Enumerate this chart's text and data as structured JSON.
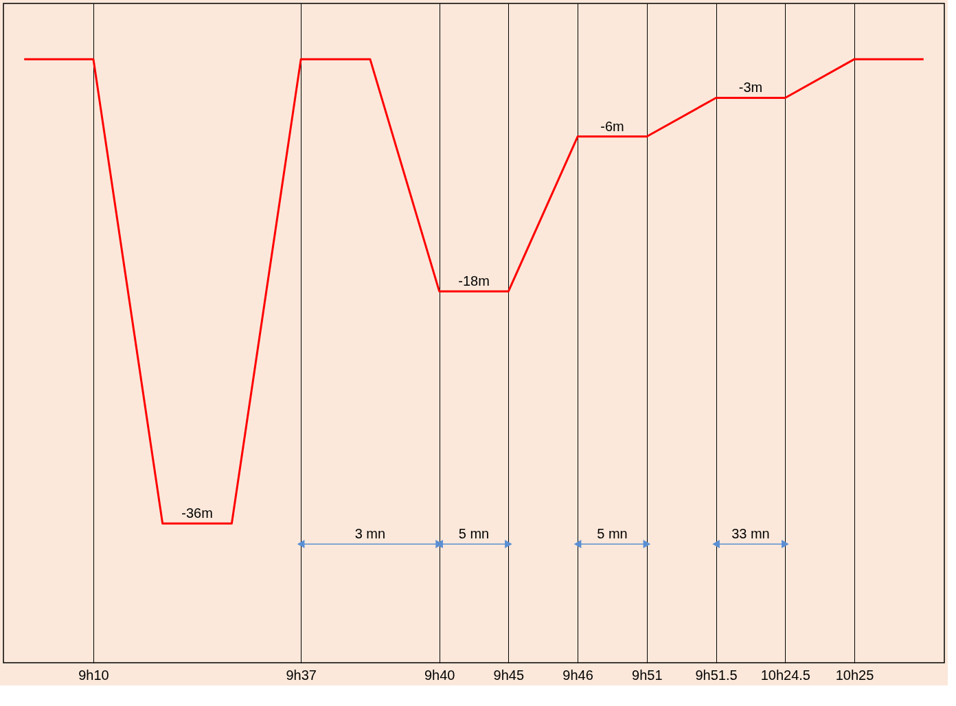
{
  "chart_data": {
    "type": "line",
    "categories": [
      null,
      "9h10",
      null,
      null,
      "9h37",
      null,
      "9h40",
      "9h45",
      "9h46",
      "9h51",
      "9h51.5",
      "10h24.5",
      "10h25",
      null
    ],
    "series": [
      {
        "color": "#ff0000",
        "values": [
          0,
          0,
          -36,
          -36,
          0,
          0,
          -18,
          -18,
          -6,
          -6,
          -3,
          -3,
          0,
          0
        ],
        "value_labels": [
          null,
          null,
          "-36m",
          null,
          null,
          null,
          "-18m",
          null,
          "-6m",
          null,
          "-3m",
          null,
          null,
          null
        ]
      }
    ],
    "annotations": [
      "3 mn",
      "5 mn",
      "5 mn",
      "33 mn"
    ],
    "grid": "x",
    "marker": "none",
    "line_style": "solid"
  }
}
